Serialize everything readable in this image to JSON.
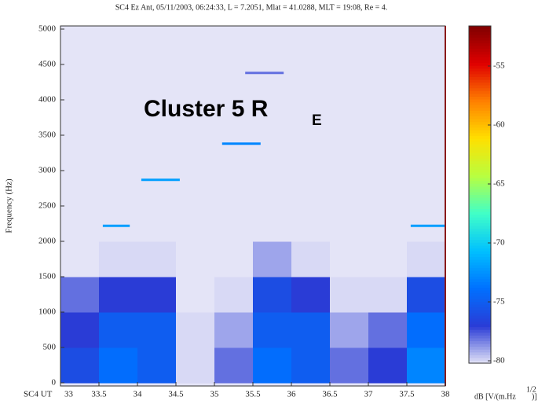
{
  "chart_data": {
    "type": "spectrogram",
    "title": "SC4 Ez Ant, 05/11/2003, 06:24:33, L = 7.2051, Mlat = 41.0288, MLT = 19:08, Re = 4.",
    "y_label": "Frequency (Hz)",
    "x_label": "SC4 UT",
    "annotation": "Cluster 5 R",
    "annotation_subscript": "E",
    "colorbar_label": "dB [V/(m.Hz",
    "colorbar_label_superscript": "1/2",
    "colorbar_label_end": ")]",
    "xlim": [
      33,
      38
    ],
    "xticks": [
      33,
      33.5,
      34,
      34.5,
      35,
      35.5,
      36,
      36.5,
      37,
      37.5,
      38
    ],
    "ylim": [
      0,
      5000
    ],
    "yticks": [
      0,
      500,
      1000,
      1500,
      2000,
      2500,
      3000,
      3500,
      4000,
      4500,
      5000
    ],
    "zlim": [
      -80.2,
      -51.6
    ],
    "zticks": [
      -80,
      -75,
      -70,
      -65,
      -60,
      -55
    ],
    "colormap": [
      "#e4e4f7",
      "#2a3cd6",
      "#0070ff",
      "#00c0ff",
      "#40ffc8",
      "#b8ff40",
      "#ffe000",
      "#ff8000",
      "#e00000",
      "#800000"
    ],
    "xbins": [
      33,
      33.5,
      34,
      34.5,
      35,
      35.5,
      36,
      36.5,
      37,
      37.5,
      38
    ],
    "ybins": [
      0,
      500,
      1000,
      1500,
      2000,
      2500,
      3000,
      3500,
      4000,
      4500,
      5000
    ],
    "z": [
      [
        -76,
        -74,
        -75,
        -80,
        -78,
        -74,
        -75,
        -78,
        -77,
        -73
      ],
      [
        -77,
        -75,
        -75,
        -80,
        -79,
        -75,
        -75,
        -79,
        -78,
        -74
      ],
      [
        -78,
        -77,
        -77,
        -81,
        -80,
        -76,
        -77,
        -80,
        -80,
        -76
      ],
      [
        -81,
        -80,
        -80,
        -82,
        -81,
        -79,
        -80,
        -81,
        -81,
        -80
      ],
      [
        -82,
        -82,
        -82,
        -82,
        -82,
        -82,
        -82,
        -82,
        -82,
        -82
      ],
      [
        -82,
        -82,
        -82,
        -82,
        -82,
        -82,
        -82,
        -82,
        -82,
        -82
      ],
      [
        -82,
        -82,
        -82,
        -82,
        -82,
        -82,
        -82,
        -82,
        -82,
        -82
      ],
      [
        -82,
        -82,
        -82,
        -82,
        -82,
        -82,
        -82,
        -82,
        -82,
        -82
      ],
      [
        -82,
        -82,
        -82,
        -82,
        -82,
        -82,
        -82,
        -82,
        -82,
        -82
      ],
      [
        -82,
        -82,
        -82,
        -82,
        -82,
        -82,
        -82,
        -82,
        -82,
        -82
      ]
    ],
    "tones": [
      {
        "x": [
          33.55,
          33.9
        ],
        "y": 2220,
        "value": -72
      },
      {
        "x": [
          34.05,
          34.55
        ],
        "y": 2870,
        "value": -72
      },
      {
        "x": [
          35.1,
          35.6
        ],
        "y": 3380,
        "value": -73
      },
      {
        "x": [
          35.4,
          35.9
        ],
        "y": 4380,
        "value": -78
      },
      {
        "x": [
          37.55,
          38
        ],
        "y": 2220,
        "value": -72
      }
    ]
  }
}
